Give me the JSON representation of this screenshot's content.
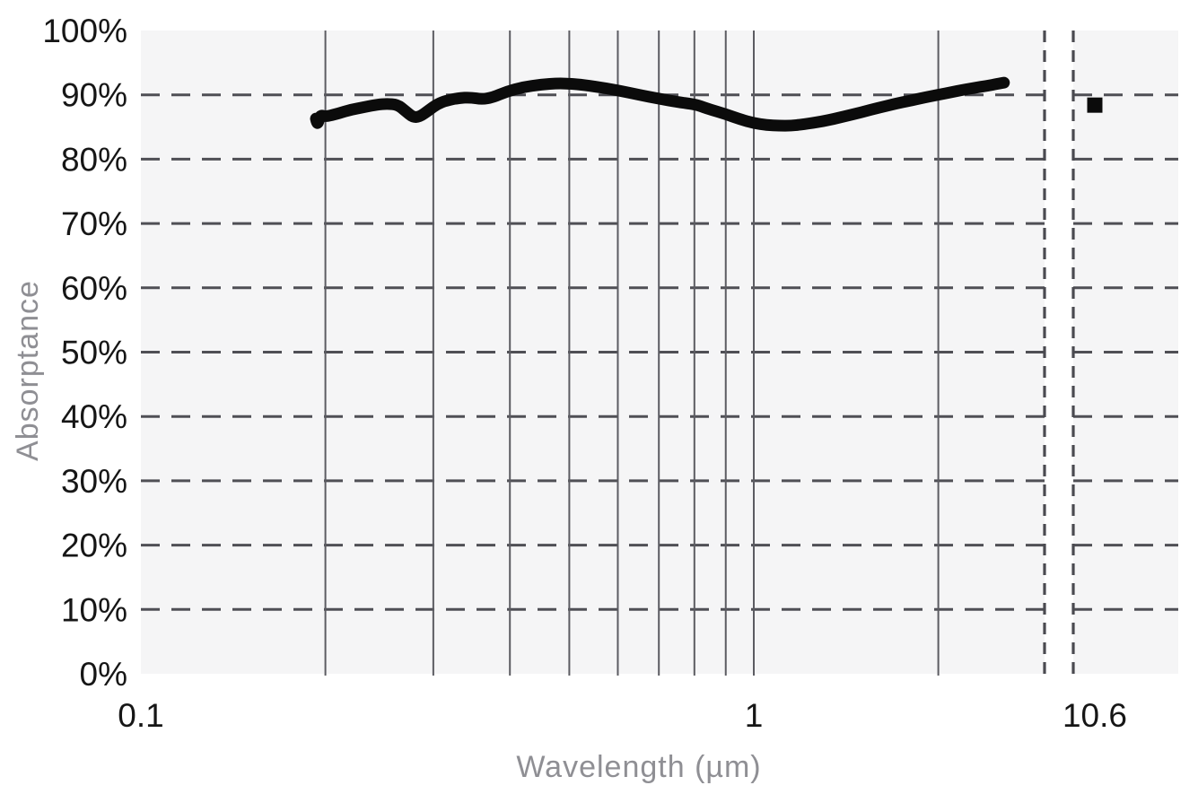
{
  "chart_data": {
    "type": "line",
    "title": "",
    "xlabel": "Wavelength (µm)",
    "ylabel": "Absorptance",
    "x_scale": "log",
    "xlim_main": [
      0.1,
      3.0
    ],
    "axis_break": {
      "after_value": 3.0,
      "isolated_tick_value": 10.6,
      "style": "dashed-vertical-pair"
    },
    "x_ticks": [
      {
        "value": 0.1,
        "label": "0.1"
      },
      {
        "value": 1,
        "label": "1"
      },
      {
        "value": 10.6,
        "label": "10.6"
      }
    ],
    "x_gridlines": [
      0.2,
      0.3,
      0.4,
      0.5,
      0.6,
      0.7,
      0.8,
      0.9,
      1.0,
      2.0
    ],
    "ylim": [
      0,
      100
    ],
    "y_ticks": [
      {
        "value": 0,
        "label": "0%"
      },
      {
        "value": 10,
        "label": "10%"
      },
      {
        "value": 20,
        "label": "20%"
      },
      {
        "value": 30,
        "label": "30%"
      },
      {
        "value": 40,
        "label": "40%"
      },
      {
        "value": 50,
        "label": "50%"
      },
      {
        "value": 60,
        "label": "60%"
      },
      {
        "value": 70,
        "label": "70%"
      },
      {
        "value": 80,
        "label": "80%"
      },
      {
        "value": 90,
        "label": "90%"
      },
      {
        "value": 100,
        "label": "100%"
      }
    ],
    "y_gridlines": [
      10,
      20,
      30,
      40,
      50,
      60,
      70,
      80,
      90
    ],
    "grid": true,
    "legend": false,
    "colors": {
      "plot_background": "#f5f5f6",
      "grid_dashed": "#4f4f55",
      "grid_solid": "#5c5c62",
      "break_line": "#4a4a50",
      "curve": "#0b0b0b",
      "marker": "#0b0b0b",
      "tick_text": "#161616",
      "axis_title_text": "#8f8f94"
    },
    "series": [
      {
        "name": "measured-absorptance-spectrum",
        "type": "line",
        "color": "#0b0b0b",
        "stroke_width": 13,
        "points": [
          [
            0.193,
            86.3
          ],
          [
            0.194,
            85.1
          ],
          [
            0.196,
            86.9
          ],
          [
            0.2,
            86.6
          ],
          [
            0.21,
            87.1
          ],
          [
            0.22,
            87.7
          ],
          [
            0.232,
            88.1
          ],
          [
            0.243,
            88.5
          ],
          [
            0.252,
            88.6
          ],
          [
            0.262,
            88.5
          ],
          [
            0.27,
            87.5
          ],
          [
            0.278,
            86.5
          ],
          [
            0.285,
            86.6
          ],
          [
            0.295,
            87.6
          ],
          [
            0.305,
            88.6
          ],
          [
            0.315,
            89.1
          ],
          [
            0.33,
            89.5
          ],
          [
            0.345,
            89.6
          ],
          [
            0.36,
            89.3
          ],
          [
            0.375,
            89.6
          ],
          [
            0.395,
            90.5
          ],
          [
            0.42,
            91.2
          ],
          [
            0.45,
            91.6
          ],
          [
            0.48,
            91.8
          ],
          [
            0.51,
            91.7
          ],
          [
            0.55,
            91.3
          ],
          [
            0.6,
            90.7
          ],
          [
            0.65,
            90.0
          ],
          [
            0.7,
            89.4
          ],
          [
            0.75,
            88.9
          ],
          [
            0.79,
            88.6
          ],
          [
            0.81,
            88.4
          ],
          [
            0.85,
            87.7
          ],
          [
            0.9,
            87.0
          ],
          [
            0.95,
            86.2
          ],
          [
            1.0,
            85.6
          ],
          [
            1.05,
            85.3
          ],
          [
            1.1,
            85.2
          ],
          [
            1.15,
            85.2
          ],
          [
            1.2,
            85.4
          ],
          [
            1.3,
            85.9
          ],
          [
            1.4,
            86.6
          ],
          [
            1.5,
            87.3
          ],
          [
            1.6,
            88.0
          ],
          [
            1.7,
            88.6
          ],
          [
            1.8,
            89.1
          ],
          [
            1.9,
            89.6
          ],
          [
            2.0,
            90.0
          ],
          [
            2.1,
            90.4
          ],
          [
            2.2,
            90.8
          ],
          [
            2.3,
            91.1
          ],
          [
            2.4,
            91.4
          ],
          [
            2.5,
            91.7
          ],
          [
            2.56,
            91.9
          ]
        ]
      },
      {
        "name": "absorptance-at-10.6um",
        "type": "point",
        "marker": "square",
        "marker_size": 17,
        "color": "#0b0b0b",
        "points": [
          [
            10.6,
            88.4
          ]
        ]
      }
    ]
  }
}
